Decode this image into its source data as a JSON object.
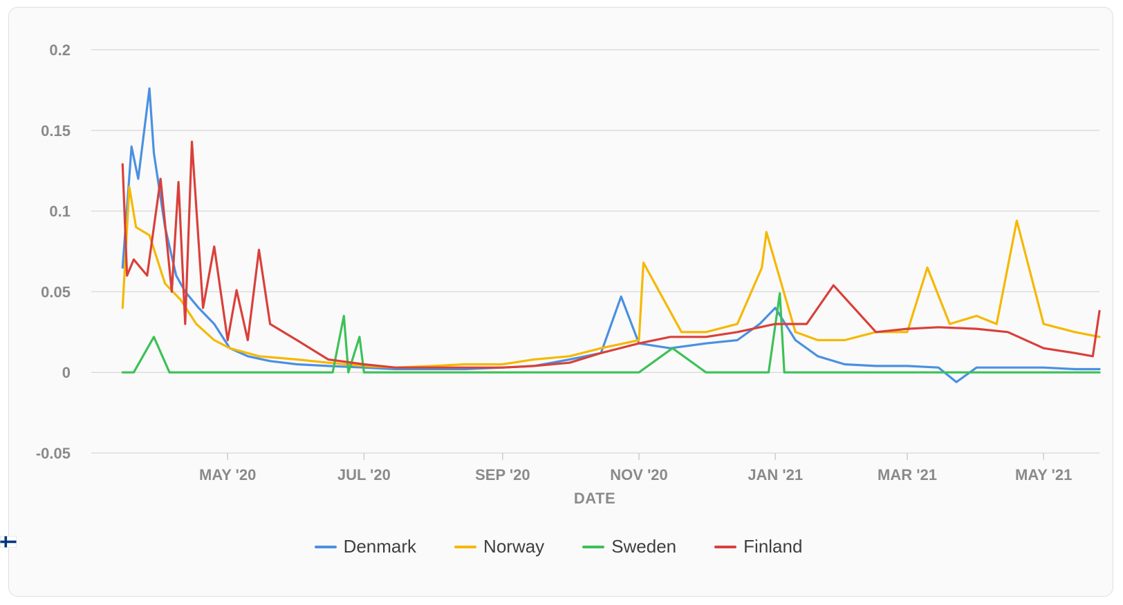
{
  "chart_data": {
    "type": "line",
    "xlabel": "DATE",
    "ylabel": "",
    "ylim": [
      -0.05,
      0.2
    ],
    "yticks": [
      "0.2",
      "0.15",
      "0.1",
      "0.05",
      "0",
      "-0.05"
    ],
    "xlim": [
      "2020-03-01",
      "2021-05-26"
    ],
    "xticks": [
      {
        "date": "2020-05-01",
        "label": "MAY '20"
      },
      {
        "date": "2020-07-01",
        "label": "JUL '20"
      },
      {
        "date": "2020-09-01",
        "label": "SEP '20"
      },
      {
        "date": "2020-11-01",
        "label": "NOV '20"
      },
      {
        "date": "2021-01-01",
        "label": "JAN '21"
      },
      {
        "date": "2021-03-01",
        "label": "MAR '21"
      },
      {
        "date": "2021-05-01",
        "label": "MAY '21"
      }
    ],
    "grid": true,
    "legend_position": "bottom",
    "series": [
      {
        "name": "Denmark",
        "flag": "denmark-flag-icon",
        "color": "#4a90e2",
        "x": [
          "2020-03-15",
          "2020-03-19",
          "2020-03-22",
          "2020-03-27",
          "2020-03-29",
          "2020-04-03",
          "2020-04-08",
          "2020-04-12",
          "2020-04-18",
          "2020-04-25",
          "2020-05-02",
          "2020-05-10",
          "2020-05-20",
          "2020-06-01",
          "2020-06-15",
          "2020-07-01",
          "2020-07-15",
          "2020-08-01",
          "2020-08-15",
          "2020-09-01",
          "2020-09-15",
          "2020-10-01",
          "2020-10-15",
          "2020-10-24",
          "2020-11-01",
          "2020-11-15",
          "2020-12-01",
          "2020-12-15",
          "2020-12-25",
          "2021-01-01",
          "2021-01-10",
          "2021-01-20",
          "2021-02-01",
          "2021-02-15",
          "2021-03-01",
          "2021-03-15",
          "2021-03-23",
          "2021-04-01",
          "2021-04-15",
          "2021-05-01",
          "2021-05-15",
          "2021-05-26"
        ],
        "y": [
          0.065,
          0.14,
          0.12,
          0.176,
          0.136,
          0.09,
          0.06,
          0.05,
          0.04,
          0.03,
          0.015,
          0.01,
          0.007,
          0.005,
          0.004,
          0.003,
          0.002,
          0.002,
          0.002,
          0.003,
          0.004,
          0.008,
          0.012,
          0.047,
          0.018,
          0.015,
          0.018,
          0.02,
          0.03,
          0.04,
          0.02,
          0.01,
          0.005,
          0.004,
          0.004,
          0.003,
          -0.006,
          0.003,
          0.003,
          0.003,
          0.002,
          0.002
        ]
      },
      {
        "name": "Norway",
        "flag": "norway-flag-icon",
        "color": "#f5b800",
        "x": [
          "2020-03-15",
          "2020-03-18",
          "2020-03-21",
          "2020-03-27",
          "2020-04-03",
          "2020-04-10",
          "2020-04-17",
          "2020-04-25",
          "2020-05-02",
          "2020-05-15",
          "2020-06-01",
          "2020-06-15",
          "2020-07-01",
          "2020-07-15",
          "2020-08-01",
          "2020-08-15",
          "2020-09-01",
          "2020-09-15",
          "2020-10-01",
          "2020-10-15",
          "2020-11-01",
          "2020-11-03",
          "2020-11-20",
          "2020-12-01",
          "2020-12-15",
          "2020-12-26",
          "2020-12-28",
          "2021-01-10",
          "2021-01-20",
          "2021-02-01",
          "2021-02-15",
          "2021-03-01",
          "2021-03-10",
          "2021-03-20",
          "2021-04-01",
          "2021-04-10",
          "2021-04-19",
          "2021-05-01",
          "2021-05-15",
          "2021-05-26"
        ],
        "y": [
          0.04,
          0.115,
          0.09,
          0.085,
          0.055,
          0.045,
          0.03,
          0.02,
          0.015,
          0.01,
          0.008,
          0.006,
          0.004,
          0.003,
          0.004,
          0.005,
          0.005,
          0.008,
          0.01,
          0.015,
          0.02,
          0.068,
          0.025,
          0.025,
          0.03,
          0.065,
          0.087,
          0.025,
          0.02,
          0.02,
          0.025,
          0.025,
          0.065,
          0.03,
          0.035,
          0.03,
          0.094,
          0.03,
          0.025,
          0.022
        ]
      },
      {
        "name": "Sweden",
        "flag": "sweden-flag-icon",
        "color": "#3cc156",
        "x": [
          "2020-03-15",
          "2020-03-20",
          "2020-03-29",
          "2020-04-05",
          "2020-04-25",
          "2020-05-15",
          "2020-06-01",
          "2020-06-17",
          "2020-06-22",
          "2020-06-24",
          "2020-06-29",
          "2020-07-01",
          "2020-08-01",
          "2020-09-01",
          "2020-10-01",
          "2020-11-01",
          "2020-11-16",
          "2020-12-01",
          "2020-12-15",
          "2020-12-29",
          "2021-01-03",
          "2021-01-05",
          "2021-01-09",
          "2021-02-01",
          "2021-03-01",
          "2021-04-01",
          "2021-05-01",
          "2021-05-26"
        ],
        "y": [
          0.0,
          0.0,
          0.022,
          0.0,
          0.0,
          0.0,
          0.0,
          0.0,
          0.035,
          0.0,
          0.022,
          0.0,
          0.0,
          0.0,
          0.0,
          0.0,
          0.015,
          0.0,
          0.0,
          0.0,
          0.049,
          0.0,
          0.0,
          0.0,
          0.0,
          0.0,
          0.0,
          0.0
        ]
      },
      {
        "name": "Finland",
        "flag": "finland-flag-icon",
        "color": "#d9403a",
        "x": [
          "2020-03-15",
          "2020-03-17",
          "2020-03-20",
          "2020-03-26",
          "2020-04-01",
          "2020-04-06",
          "2020-04-09",
          "2020-04-12",
          "2020-04-15",
          "2020-04-20",
          "2020-04-25",
          "2020-05-01",
          "2020-05-05",
          "2020-05-10",
          "2020-05-15",
          "2020-05-20",
          "2020-06-01",
          "2020-06-15",
          "2020-07-01",
          "2020-07-15",
          "2020-08-01",
          "2020-08-15",
          "2020-09-01",
          "2020-09-15",
          "2020-10-01",
          "2020-10-15",
          "2020-11-01",
          "2020-11-15",
          "2020-12-01",
          "2020-12-15",
          "2021-01-01",
          "2021-01-15",
          "2021-01-27",
          "2021-02-15",
          "2021-03-01",
          "2021-03-15",
          "2021-04-01",
          "2021-04-15",
          "2021-05-01",
          "2021-05-15",
          "2021-05-23",
          "2021-05-26"
        ],
        "y": [
          0.129,
          0.06,
          0.07,
          0.06,
          0.12,
          0.05,
          0.118,
          0.03,
          0.143,
          0.04,
          0.078,
          0.02,
          0.051,
          0.02,
          0.076,
          0.03,
          0.02,
          0.008,
          0.005,
          0.003,
          0.003,
          0.003,
          0.003,
          0.004,
          0.006,
          0.012,
          0.018,
          0.022,
          0.022,
          0.025,
          0.03,
          0.03,
          0.054,
          0.025,
          0.027,
          0.028,
          0.027,
          0.025,
          0.015,
          0.012,
          0.01,
          0.038
        ]
      }
    ]
  }
}
